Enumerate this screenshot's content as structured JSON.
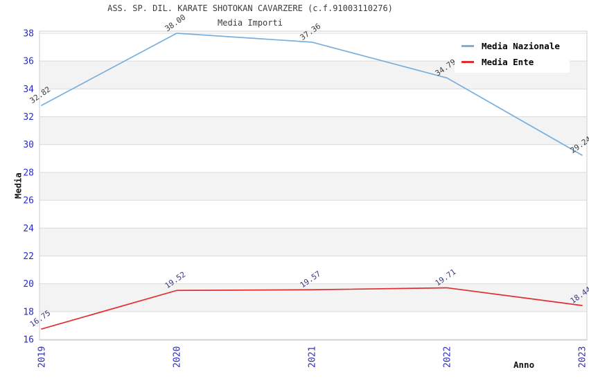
{
  "chart_data": {
    "type": "line",
    "title": "ASS. SP. DIL. KARATE SHOTOKAN CAVARZERE (c.f.91003110276)",
    "subtitle": "Media Importi",
    "xlabel": "Anno",
    "ylabel": "Media",
    "categories": [
      "2019",
      "2020",
      "2021",
      "2022",
      "2023"
    ],
    "yticks": [
      16,
      18,
      20,
      22,
      24,
      26,
      28,
      30,
      32,
      34,
      36,
      38
    ],
    "ylim": [
      16,
      38.2
    ],
    "grid": "horizontal-gridlines-with-alternating-bands",
    "legend_position": "top-right",
    "series": [
      {
        "name": "Media Nazionale",
        "values": [
          32.82,
          38.0,
          37.36,
          34.79,
          29.24
        ],
        "color": "#78afdc",
        "label_color": "#3a3a3a"
      },
      {
        "name": "Media Ente",
        "values": [
          16.75,
          19.52,
          19.57,
          19.71,
          18.44
        ],
        "color": "#e12d2d",
        "label_color": "#383880"
      }
    ],
    "colors": {
      "background": "#ffffff",
      "band": "#f3f3f3",
      "gridline": "#dadada",
      "plot_border": "#cccccc",
      "tick_label": "#2929cc",
      "axis_label": "#111111",
      "title": "#3c3c3c"
    }
  }
}
